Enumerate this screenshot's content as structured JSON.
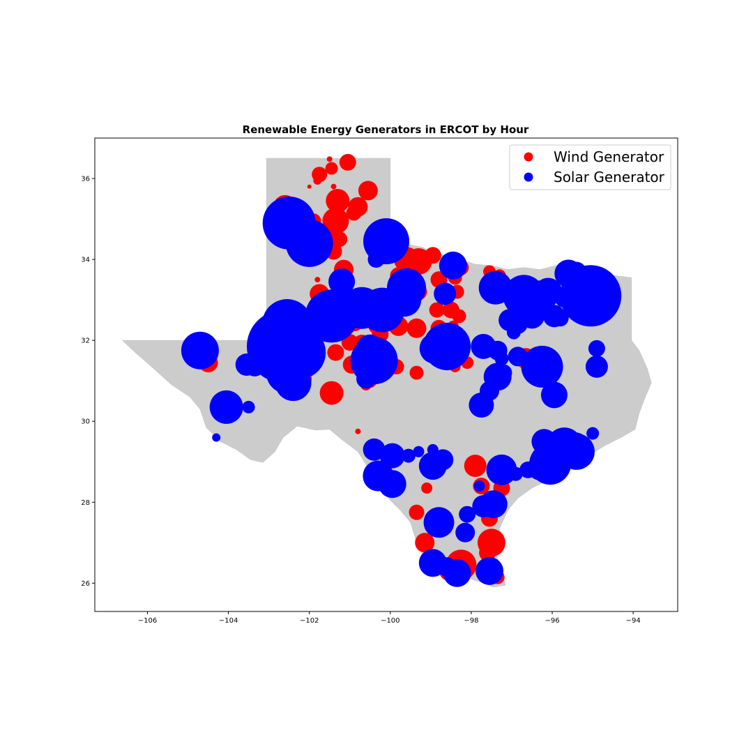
{
  "chart_data": {
    "type": "scatter",
    "title": "Renewable Energy Generators in ERCOT by Hour",
    "xlabel": "",
    "ylabel": "",
    "xlim": [
      -107.3,
      -92.9
    ],
    "ylim": [
      25.3,
      37.0
    ],
    "x_ticks": [
      -106,
      -104,
      -102,
      -100,
      -98,
      -96,
      -94
    ],
    "y_ticks": [
      26,
      28,
      30,
      32,
      34,
      36
    ],
    "x_tick_labels": [
      "−106",
      "−104",
      "−102",
      "−100",
      "−98",
      "−96",
      "−94"
    ],
    "y_tick_labels": [
      "26",
      "28",
      "30",
      "32",
      "34",
      "36"
    ],
    "grid": false,
    "legend_position": "top-right",
    "basemap": "Texas counties",
    "basemap_color": "#cccccc",
    "series": [
      {
        "name": "Wind Generator",
        "color": "#ff0000",
        "points": [
          {
            "x": -101.05,
            "y": 36.4,
            "s": 12
          },
          {
            "x": -101.45,
            "y": 36.25,
            "s": 9
          },
          {
            "x": -101.75,
            "y": 36.1,
            "s": 11
          },
          {
            "x": -101.5,
            "y": 36.48,
            "s": 4
          },
          {
            "x": -101.8,
            "y": 35.95,
            "s": 6
          },
          {
            "x": -101.2,
            "y": 35.55,
            "s": 5
          },
          {
            "x": -101.4,
            "y": 35.8,
            "s": 4
          },
          {
            "x": -102.0,
            "y": 35.8,
            "s": 3
          },
          {
            "x": -100.55,
            "y": 35.7,
            "s": 14
          },
          {
            "x": -101.3,
            "y": 35.45,
            "s": 17
          },
          {
            "x": -100.8,
            "y": 35.3,
            "s": 14
          },
          {
            "x": -100.9,
            "y": 35.15,
            "s": 11
          },
          {
            "x": -102.6,
            "y": 35.3,
            "s": 17
          },
          {
            "x": -102.3,
            "y": 35.1,
            "s": 13
          },
          {
            "x": -101.9,
            "y": 34.95,
            "s": 11
          },
          {
            "x": -101.35,
            "y": 34.95,
            "s": 19
          },
          {
            "x": -102.95,
            "y": 34.8,
            "s": 9
          },
          {
            "x": -102.75,
            "y": 34.55,
            "s": 12
          },
          {
            "x": -101.5,
            "y": 34.55,
            "s": 12
          },
          {
            "x": -101.25,
            "y": 34.5,
            "s": 11
          },
          {
            "x": -101.8,
            "y": 34.15,
            "s": 13
          },
          {
            "x": -101.4,
            "y": 34.2,
            "s": 12
          },
          {
            "x": -101.15,
            "y": 33.75,
            "s": 14
          },
          {
            "x": -101.8,
            "y": 33.5,
            "s": 4
          },
          {
            "x": -101.75,
            "y": 33.15,
            "s": 14
          },
          {
            "x": -101.45,
            "y": 33.05,
            "s": 10
          },
          {
            "x": -101.2,
            "y": 32.95,
            "s": 12
          },
          {
            "x": -99.6,
            "y": 34.0,
            "s": 18
          },
          {
            "x": -99.3,
            "y": 33.95,
            "s": 19
          },
          {
            "x": -98.95,
            "y": 34.1,
            "s": 12
          },
          {
            "x": -98.25,
            "y": 33.8,
            "s": 11
          },
          {
            "x": -98.8,
            "y": 33.5,
            "s": 12
          },
          {
            "x": -98.4,
            "y": 33.55,
            "s": 10
          },
          {
            "x": -98.35,
            "y": 33.2,
            "s": 10
          },
          {
            "x": -98.6,
            "y": 33.05,
            "s": 9
          },
          {
            "x": -98.5,
            "y": 32.75,
            "s": 12
          },
          {
            "x": -98.3,
            "y": 32.6,
            "s": 10
          },
          {
            "x": -98.8,
            "y": 32.3,
            "s": 12
          },
          {
            "x": -98.45,
            "y": 32.35,
            "s": 8
          },
          {
            "x": -98.85,
            "y": 32.75,
            "s": 11
          },
          {
            "x": -99.8,
            "y": 33.6,
            "s": 12
          },
          {
            "x": -99.3,
            "y": 33.2,
            "s": 12
          },
          {
            "x": -100.1,
            "y": 33.0,
            "s": 14
          },
          {
            "x": -100.5,
            "y": 32.8,
            "s": 15
          },
          {
            "x": -100.9,
            "y": 32.5,
            "s": 16
          },
          {
            "x": -100.3,
            "y": 32.4,
            "s": 15
          },
          {
            "x": -99.35,
            "y": 32.3,
            "s": 14
          },
          {
            "x": -99.8,
            "y": 32.35,
            "s": 14
          },
          {
            "x": -100.25,
            "y": 32.15,
            "s": 12
          },
          {
            "x": -100.7,
            "y": 31.9,
            "s": 14
          },
          {
            "x": -100.4,
            "y": 31.95,
            "s": 11
          },
          {
            "x": -101.0,
            "y": 31.95,
            "s": 12
          },
          {
            "x": -101.35,
            "y": 31.7,
            "s": 12
          },
          {
            "x": -100.95,
            "y": 31.4,
            "s": 13
          },
          {
            "x": -100.5,
            "y": 31.3,
            "s": 12
          },
          {
            "x": -99.85,
            "y": 31.35,
            "s": 11
          },
          {
            "x": -99.35,
            "y": 31.2,
            "s": 10
          },
          {
            "x": -100.5,
            "y": 31.0,
            "s": 10
          },
          {
            "x": -100.6,
            "y": 30.9,
            "s": 8
          },
          {
            "x": -101.45,
            "y": 30.7,
            "s": 17
          },
          {
            "x": -102.2,
            "y": 31.05,
            "s": 15
          },
          {
            "x": -102.6,
            "y": 31.1,
            "s": 16
          },
          {
            "x": -102.9,
            "y": 31.45,
            "s": 15
          },
          {
            "x": -104.5,
            "y": 31.45,
            "s": 14
          },
          {
            "x": -100.8,
            "y": 29.75,
            "s": 4
          },
          {
            "x": -98.6,
            "y": 31.5,
            "s": 14
          },
          {
            "x": -98.4,
            "y": 31.35,
            "s": 8
          },
          {
            "x": -98.1,
            "y": 31.45,
            "s": 9
          },
          {
            "x": -96.65,
            "y": 31.55,
            "s": 15
          },
          {
            "x": -96.3,
            "y": 31.5,
            "s": 12
          },
          {
            "x": -97.55,
            "y": 33.7,
            "s": 9
          },
          {
            "x": -97.3,
            "y": 33.6,
            "s": 9
          },
          {
            "x": -97.9,
            "y": 28.9,
            "s": 16
          },
          {
            "x": -97.75,
            "y": 28.4,
            "s": 12
          },
          {
            "x": -97.25,
            "y": 28.35,
            "s": 12
          },
          {
            "x": -99.1,
            "y": 28.35,
            "s": 8
          },
          {
            "x": -99.35,
            "y": 27.75,
            "s": 11
          },
          {
            "x": -99.15,
            "y": 27.0,
            "s": 14
          },
          {
            "x": -97.55,
            "y": 27.6,
            "s": 12
          },
          {
            "x": -97.5,
            "y": 27.0,
            "s": 20
          },
          {
            "x": -97.6,
            "y": 26.75,
            "s": 12
          },
          {
            "x": -98.25,
            "y": 26.45,
            "s": 22
          },
          {
            "x": -98.55,
            "y": 26.3,
            "s": 14
          },
          {
            "x": -97.55,
            "y": 26.3,
            "s": 16
          },
          {
            "x": -97.35,
            "y": 26.15,
            "s": 10
          }
        ]
      },
      {
        "name": "Solar Generator",
        "color": "#0000ff",
        "points": [
          {
            "x": -102.5,
            "y": 34.9,
            "s": 38
          },
          {
            "x": -102.0,
            "y": 34.4,
            "s": 34
          },
          {
            "x": -100.1,
            "y": 34.45,
            "s": 33
          },
          {
            "x": -100.35,
            "y": 34.0,
            "s": 12
          },
          {
            "x": -98.45,
            "y": 33.85,
            "s": 20
          },
          {
            "x": -101.2,
            "y": 33.45,
            "s": 19
          },
          {
            "x": -99.6,
            "y": 33.3,
            "s": 28
          },
          {
            "x": -99.65,
            "y": 33.0,
            "s": 24
          },
          {
            "x": -98.65,
            "y": 33.15,
            "s": 16
          },
          {
            "x": -100.7,
            "y": 32.8,
            "s": 30
          },
          {
            "x": -100.2,
            "y": 32.75,
            "s": 32
          },
          {
            "x": -101.45,
            "y": 32.6,
            "s": 38
          },
          {
            "x": -102.55,
            "y": 32.4,
            "s": 36
          },
          {
            "x": -102.65,
            "y": 31.85,
            "s": 52
          },
          {
            "x": -102.25,
            "y": 31.7,
            "s": 38
          },
          {
            "x": -102.55,
            "y": 31.2,
            "s": 30
          },
          {
            "x": -102.4,
            "y": 30.95,
            "s": 26
          },
          {
            "x": -100.5,
            "y": 31.8,
            "s": 20
          },
          {
            "x": -100.4,
            "y": 31.5,
            "s": 34
          },
          {
            "x": -100.6,
            "y": 31.05,
            "s": 14
          },
          {
            "x": -104.7,
            "y": 31.75,
            "s": 27
          },
          {
            "x": -103.55,
            "y": 31.4,
            "s": 16
          },
          {
            "x": -103.35,
            "y": 31.35,
            "s": 14
          },
          {
            "x": -104.05,
            "y": 30.35,
            "s": 24
          },
          {
            "x": -103.5,
            "y": 30.35,
            "s": 9
          },
          {
            "x": -104.3,
            "y": 29.6,
            "s": 6
          },
          {
            "x": -98.6,
            "y": 31.85,
            "s": 34
          },
          {
            "x": -98.9,
            "y": 31.8,
            "s": 22
          },
          {
            "x": -97.4,
            "y": 33.3,
            "s": 24
          },
          {
            "x": -96.7,
            "y": 33.1,
            "s": 30
          },
          {
            "x": -96.4,
            "y": 33.0,
            "s": 28
          },
          {
            "x": -96.5,
            "y": 32.6,
            "s": 18
          },
          {
            "x": -96.1,
            "y": 33.2,
            "s": 20
          },
          {
            "x": -95.6,
            "y": 33.65,
            "s": 20
          },
          {
            "x": -95.4,
            "y": 33.7,
            "s": 14
          },
          {
            "x": -95.05,
            "y": 33.1,
            "s": 44
          },
          {
            "x": -95.7,
            "y": 33.05,
            "s": 14
          },
          {
            "x": -95.95,
            "y": 32.6,
            "s": 16
          },
          {
            "x": -95.8,
            "y": 32.55,
            "s": 12
          },
          {
            "x": -97.05,
            "y": 32.5,
            "s": 16
          },
          {
            "x": -96.85,
            "y": 32.4,
            "s": 14
          },
          {
            "x": -96.95,
            "y": 32.2,
            "s": 10
          },
          {
            "x": -97.7,
            "y": 31.85,
            "s": 18
          },
          {
            "x": -97.35,
            "y": 31.75,
            "s": 14
          },
          {
            "x": -96.85,
            "y": 31.6,
            "s": 14
          },
          {
            "x": -97.25,
            "y": 31.55,
            "s": 10
          },
          {
            "x": -97.35,
            "y": 31.1,
            "s": 20
          },
          {
            "x": -97.2,
            "y": 31.2,
            "s": 12
          },
          {
            "x": -97.55,
            "y": 30.75,
            "s": 14
          },
          {
            "x": -97.75,
            "y": 30.4,
            "s": 18
          },
          {
            "x": -96.25,
            "y": 31.35,
            "s": 30
          },
          {
            "x": -95.95,
            "y": 30.65,
            "s": 19
          },
          {
            "x": -94.9,
            "y": 31.8,
            "s": 12
          },
          {
            "x": -94.9,
            "y": 31.35,
            "s": 16
          },
          {
            "x": -95.0,
            "y": 29.7,
            "s": 9
          },
          {
            "x": -96.2,
            "y": 29.5,
            "s": 18
          },
          {
            "x": -95.7,
            "y": 29.4,
            "s": 26
          },
          {
            "x": -95.45,
            "y": 29.35,
            "s": 22
          },
          {
            "x": -95.4,
            "y": 29.25,
            "s": 26
          },
          {
            "x": -96.1,
            "y": 29.1,
            "s": 22
          },
          {
            "x": -96.05,
            "y": 28.95,
            "s": 30
          },
          {
            "x": -96.3,
            "y": 28.85,
            "s": 18
          },
          {
            "x": -96.6,
            "y": 28.8,
            "s": 12
          },
          {
            "x": -96.9,
            "y": 28.7,
            "s": 10
          },
          {
            "x": -97.25,
            "y": 28.8,
            "s": 22
          },
          {
            "x": -97.8,
            "y": 28.4,
            "s": 8
          },
          {
            "x": -97.45,
            "y": 27.95,
            "s": 20
          },
          {
            "x": -97.7,
            "y": 27.9,
            "s": 16
          },
          {
            "x": -98.1,
            "y": 27.7,
            "s": 12
          },
          {
            "x": -98.15,
            "y": 27.25,
            "s": 14
          },
          {
            "x": -98.8,
            "y": 27.5,
            "s": 22
          },
          {
            "x": -98.95,
            "y": 28.9,
            "s": 20
          },
          {
            "x": -98.7,
            "y": 29.05,
            "s": 15
          },
          {
            "x": -98.95,
            "y": 29.3,
            "s": 8
          },
          {
            "x": -99.3,
            "y": 29.25,
            "s": 8
          },
          {
            "x": -99.55,
            "y": 29.15,
            "s": 10
          },
          {
            "x": -100.4,
            "y": 29.3,
            "s": 16
          },
          {
            "x": -99.95,
            "y": 29.15,
            "s": 18
          },
          {
            "x": -100.3,
            "y": 28.65,
            "s": 22
          },
          {
            "x": -99.95,
            "y": 28.45,
            "s": 20
          },
          {
            "x": -98.95,
            "y": 26.5,
            "s": 20
          },
          {
            "x": -98.35,
            "y": 26.25,
            "s": 20
          },
          {
            "x": -97.55,
            "y": 26.3,
            "s": 20
          },
          {
            "x": -98.6,
            "y": 26.4,
            "s": 14
          }
        ]
      }
    ]
  },
  "legend": {
    "wind_label": "Wind Generator",
    "solar_label": "Solar Generator"
  },
  "texas_outline": [
    [
      -106.62,
      32.0
    ],
    [
      -104.5,
      32.0
    ],
    [
      -103.06,
      32.0
    ],
    [
      -103.06,
      36.5
    ],
    [
      -100.0,
      36.5
    ],
    [
      -100.0,
      34.56
    ],
    [
      -99.6,
      34.38
    ],
    [
      -99.2,
      34.3
    ],
    [
      -98.9,
      34.15
    ],
    [
      -98.4,
      34.05
    ],
    [
      -97.9,
      33.88
    ],
    [
      -97.5,
      33.85
    ],
    [
      -97.1,
      33.75
    ],
    [
      -96.7,
      33.8
    ],
    [
      -96.3,
      33.75
    ],
    [
      -95.9,
      33.85
    ],
    [
      -95.5,
      33.88
    ],
    [
      -95.1,
      33.7
    ],
    [
      -94.7,
      33.63
    ],
    [
      -94.04,
      33.55
    ],
    [
      -94.04,
      32.0
    ],
    [
      -93.85,
      31.75
    ],
    [
      -93.65,
      31.3
    ],
    [
      -93.55,
      30.95
    ],
    [
      -93.7,
      30.6
    ],
    [
      -93.85,
      30.2
    ],
    [
      -93.95,
      29.8
    ],
    [
      -94.3,
      29.6
    ],
    [
      -94.7,
      29.4
    ],
    [
      -95.1,
      29.15
    ],
    [
      -95.5,
      28.85
    ],
    [
      -96.0,
      28.6
    ],
    [
      -96.5,
      28.35
    ],
    [
      -96.85,
      28.1
    ],
    [
      -97.1,
      27.8
    ],
    [
      -97.3,
      27.35
    ],
    [
      -97.4,
      26.8
    ],
    [
      -97.3,
      26.4
    ],
    [
      -97.15,
      25.95
    ],
    [
      -97.45,
      25.9
    ],
    [
      -97.7,
      26.0
    ],
    [
      -98.0,
      26.1
    ],
    [
      -98.35,
      26.2
    ],
    [
      -98.7,
      26.35
    ],
    [
      -99.1,
      26.5
    ],
    [
      -99.35,
      27.0
    ],
    [
      -99.5,
      27.5
    ],
    [
      -99.75,
      27.8
    ],
    [
      -100.05,
      28.1
    ],
    [
      -100.35,
      28.5
    ],
    [
      -100.55,
      28.85
    ],
    [
      -100.8,
      29.25
    ],
    [
      -101.2,
      29.55
    ],
    [
      -101.5,
      29.8
    ],
    [
      -101.85,
      29.78
    ],
    [
      -102.3,
      29.88
    ],
    [
      -102.65,
      29.6
    ],
    [
      -102.85,
      29.25
    ],
    [
      -103.15,
      28.98
    ],
    [
      -103.45,
      29.05
    ],
    [
      -103.8,
      29.3
    ],
    [
      -104.2,
      29.5
    ],
    [
      -104.55,
      29.85
    ],
    [
      -104.7,
      30.3
    ],
    [
      -104.95,
      30.6
    ],
    [
      -105.4,
      30.9
    ],
    [
      -105.9,
      31.35
    ],
    [
      -106.3,
      31.7
    ]
  ]
}
